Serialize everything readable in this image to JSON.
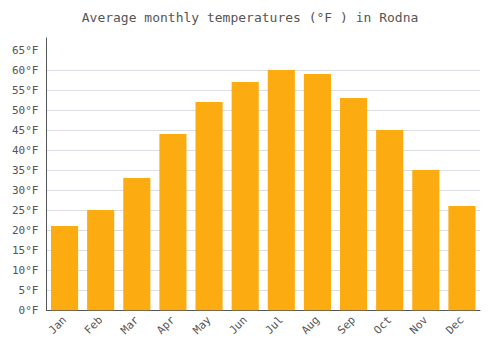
{
  "chart_data": {
    "type": "bar",
    "title": "Average monthly temperatures (°F ) in Rodna",
    "categories": [
      "Jan",
      "Feb",
      "Mar",
      "Apr",
      "May",
      "Jun",
      "Jul",
      "Aug",
      "Sep",
      "Oct",
      "Nov",
      "Dec"
    ],
    "values": [
      21,
      25,
      33,
      44,
      52,
      57,
      60,
      59,
      53,
      45,
      35,
      26
    ],
    "color": "#FCAB10",
    "ylim": [
      0,
      68
    ],
    "yticks": [
      {
        "value": 0,
        "label": "0°F"
      },
      {
        "value": 5,
        "label": "5°F"
      },
      {
        "value": 10,
        "label": "10°F"
      },
      {
        "value": 15,
        "label": "15°F"
      },
      {
        "value": 20,
        "label": "20°F"
      },
      {
        "value": 25,
        "label": "25°F"
      },
      {
        "value": 30,
        "label": "30°F"
      },
      {
        "value": 35,
        "label": "35°F"
      },
      {
        "value": 40,
        "label": "40°F"
      },
      {
        "value": 45,
        "label": "45°F"
      },
      {
        "value": 50,
        "label": "50°F"
      },
      {
        "value": 55,
        "label": "55°F"
      },
      {
        "value": 60,
        "label": "60°F"
      },
      {
        "value": 65,
        "label": "65°F"
      }
    ],
    "grid": true
  }
}
